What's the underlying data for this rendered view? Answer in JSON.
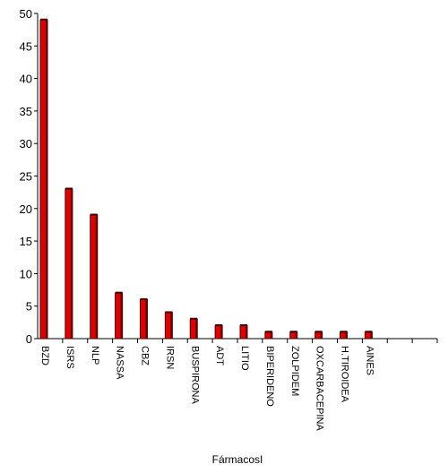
{
  "chart_data": {
    "type": "bar",
    "x_label": "FármacosI",
    "categories": [
      "BZD",
      "ISRS",
      "NLP",
      "NASSA",
      "CBZ",
      "IRSN",
      "BUSPIRONA",
      "ADT",
      "LITIO",
      "BIPERIDENO",
      "ZOLPIDEM",
      "OXCARBACEPINA",
      "H.TIROIDEA",
      "AINES",
      null,
      null
    ],
    "values": [
      49,
      23,
      19,
      7,
      6,
      4,
      3,
      2,
      2,
      1,
      1,
      1,
      1,
      1,
      null,
      null
    ],
    "color": "#e00000",
    "ylim": [
      0,
      50
    ],
    "yticks": [
      0,
      5,
      10,
      15,
      20,
      25,
      30,
      35,
      40,
      45,
      50
    ],
    "grid": false
  }
}
